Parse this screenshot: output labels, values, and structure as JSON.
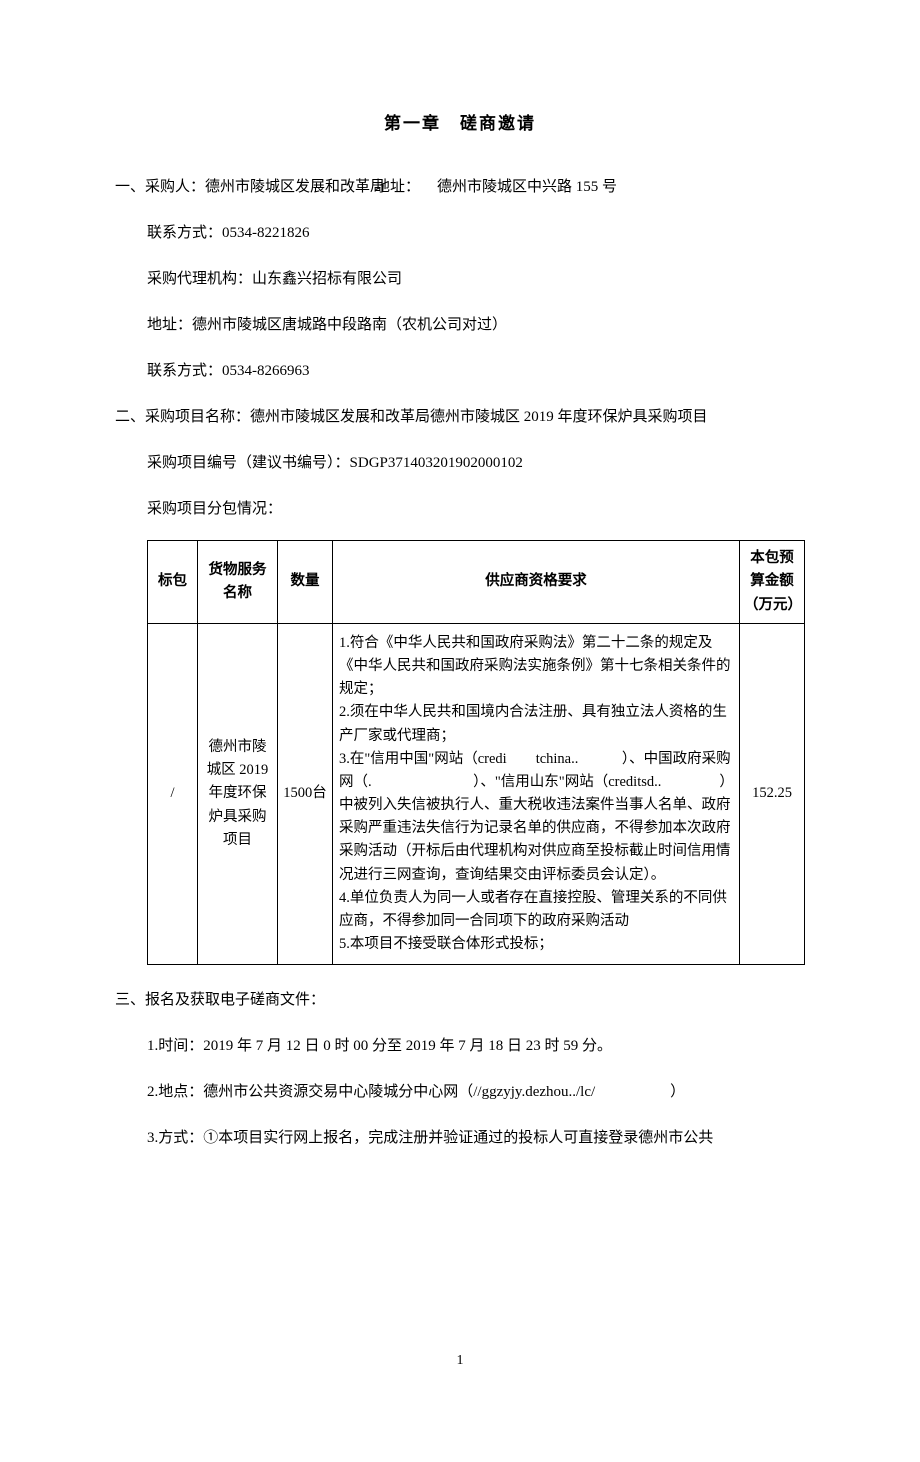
{
  "chapter_title": "第一章　磋商邀请",
  "section1": {
    "prefix": "一、",
    "purchaser_label": "采购人：",
    "purchaser": "德州市陵城区发展和改革局",
    "address_label": "地址：",
    "address": "德州市陵城区中兴路 155 号",
    "contact_label": "联系方式：",
    "contact": "0534-8221826",
    "agency_label": "采购代理机构：",
    "agency": "山东鑫兴招标有限公司",
    "agency_addr_label": "地址：",
    "agency_addr": "德州市陵城区唐城路中段路南（农机公司对过）",
    "agency_contact_label": "联系方式：",
    "agency_contact": "0534-8266963"
  },
  "section2": {
    "prefix": "二、",
    "project_name_label": "采购项目名称：",
    "project_name": "德州市陵城区发展和改革局德州市陵城区 2019 年度环保炉具采购项目",
    "project_no_label": "采购项目编号（建议书编号）：",
    "project_no": "SDGP371403201902000102",
    "pkg_label": "采购项目分包情况："
  },
  "table": {
    "headers": [
      "标包",
      "货物服务名称",
      "数量",
      "供应商资格要求",
      "本包预算金额（万元）"
    ],
    "row": {
      "biaobao": "/",
      "name": "德州市陵城区 2019年度环保炉具采购项目",
      "qty": "1500台",
      "requirements": "1.符合《中华人民共和国政府采购法》第二十二条的规定及《中华人民共和国政府采购法实施条例》第十七条相关条件的规定；\n2.须在中华人民共和国境内合法注册、具有独立法人资格的生产厂家或代理商；\n3.在\"信用中国\"网站（credi　　tchina..　　　）、中国政府采购网（.　　　　　　　）、\"信用山东\"网站（creditsd..　　　　）中被列入失信被执行人、重大税收违法案件当事人名单、政府采购严重违法失信行为记录名单的供应商，不得参加本次政府采购活动（开标后由代理机构对供应商至投标截止时间信用情况进行三网查询，查询结果交由评标委员会认定）。\n4.单位负责人为同一人或者存在直接控股、管理关系的不同供应商，不得参加同一合同项下的政府采购活动\n5.本项目不接受联合体形式投标；",
      "budget": "152.25"
    }
  },
  "section3": {
    "prefix": "三、",
    "title": "报名及获取电子磋商文件：",
    "item1": "1.时间：2019 年 7 月 12 日 0 时 00 分至 2019 年 7 月 18 日 23 时 59 分。",
    "item2": "2.地点：德州市公共资源交易中心陵城分中心网（//ggzyjy.dezhou../lc/　　　　　）",
    "item3": "3.方式：①本项目实行网上报名，完成注册并验证通过的投标人可直接登录德州市公共"
  },
  "page_number": "1"
}
